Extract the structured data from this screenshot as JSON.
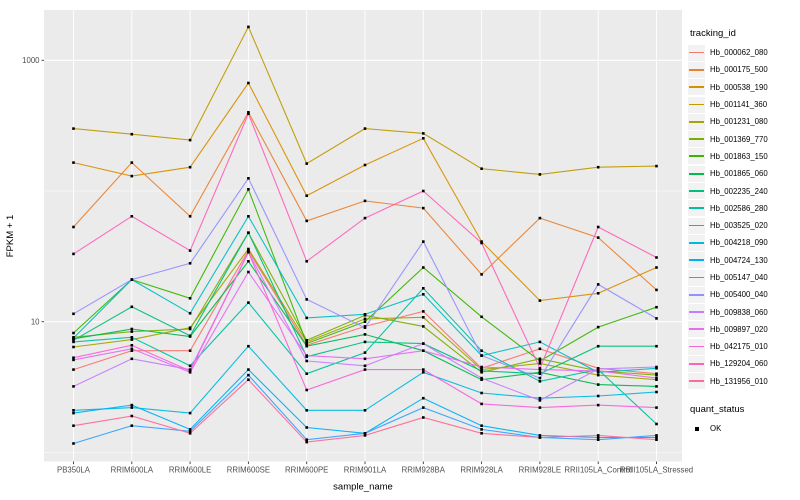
{
  "figure": {
    "colors": {
      "panel_bg": "#EBEBEB",
      "grid": "#FFFFFF",
      "tick_label": "#4D4D4D",
      "tick_mark": "#333333",
      "axis_title": "#000000",
      "point": "#000000",
      "legend_key_bg": "#F2F2F2"
    }
  },
  "chart_data": {
    "type": "line",
    "title": "",
    "xlabel": "sample_name",
    "ylabel": "FPKM + 1",
    "y_scale": "log10",
    "y_axis": {
      "tick_values": [
        1000,
        10
      ],
      "tick_labels": [
        "1000",
        "10"
      ],
      "major_gridlines": [
        10,
        1000
      ],
      "minor_gridlines": [
        1,
        100
      ]
    },
    "legend": {
      "title": "tracking_id",
      "position": "right"
    },
    "quant_status_legend": {
      "title": "quant_status",
      "entries": [
        {
          "label": "OK",
          "marker": "square-point-icon"
        }
      ]
    },
    "categories": [
      "PB350LA",
      "RRIM600LA",
      "RRIM600LE",
      "RRIM600SE",
      "RRIM600PE",
      "RRIM901LA",
      "RRIM928BA",
      "RRIM928LA",
      "RRIM928LE",
      "RRII105LA_Control",
      "RRII105LA_Stressed"
    ],
    "series": [
      {
        "name": "Hb_000062_080",
        "color": "#F8766D",
        "values": [
          4.3,
          6.0,
          6.0,
          35,
          6.6,
          9.2,
          12,
          4.4,
          6.2,
          4.4,
          4.0
        ]
      },
      {
        "name": "Hb_000175_500",
        "color": "#EA8331",
        "values": [
          53,
          165,
          64,
          400,
          59,
          84,
          74,
          23,
          62,
          44,
          17.5
        ]
      },
      {
        "name": "Hb_000538_190",
        "color": "#D89000",
        "values": [
          165,
          130,
          152,
          670,
          92,
          158,
          253,
          41,
          14.5,
          16.5,
          26
        ]
      },
      {
        "name": "Hb_001141_360",
        "color": "#C09B00",
        "values": [
          300,
          272,
          245,
          1800,
          162,
          300,
          276,
          148,
          134,
          152,
          155
        ]
      },
      {
        "name": "Hb_001231_080",
        "color": "#A3A500",
        "values": [
          6.4,
          7.3,
          9.0,
          36,
          7.0,
          10.5,
          10.8,
          4.3,
          4.8,
          3.9,
          3.6
        ]
      },
      {
        "name": "Hb_001369_770",
        "color": "#7CAE00",
        "values": [
          7.6,
          8.4,
          8.8,
          48,
          7.2,
          11.2,
          9.2,
          4.1,
          5.2,
          4.2,
          3.9
        ]
      },
      {
        "name": "Hb_001863_150",
        "color": "#39B600",
        "values": [
          8.2,
          21,
          15.1,
          103,
          6.8,
          10,
          26,
          10.9,
          5.0,
          9.1,
          12.9
        ]
      },
      {
        "name": "Hb_001865_060",
        "color": "#00BB4E",
        "values": [
          7.4,
          8.8,
          7.7,
          29,
          6.5,
          8.0,
          6.0,
          3.6,
          4.1,
          3.3,
          3.2
        ]
      },
      {
        "name": "Hb_002235_240",
        "color": "#00BF7D",
        "values": [
          7.2,
          13,
          7.8,
          48,
          5.4,
          7.0,
          6.8,
          4.2,
          4.0,
          6.5,
          6.5
        ]
      },
      {
        "name": "Hb_002586_280",
        "color": "#00C1A3",
        "values": [
          7.0,
          7.6,
          4.6,
          14,
          4.0,
          5.8,
          18,
          6.0,
          3.5,
          4.3,
          1.65
        ]
      },
      {
        "name": "Hb_003525_020",
        "color": "#00BFC4",
        "values": [
          7.5,
          21,
          11.6,
          64,
          10.7,
          11.4,
          16.2,
          5.5,
          7.0,
          4.1,
          4.4
        ]
      },
      {
        "name": "Hb_004218_090",
        "color": "#00BAE0",
        "values": [
          2.1,
          2.2,
          2.0,
          6.5,
          2.1,
          2.1,
          4.1,
          2.85,
          2.6,
          2.7,
          2.9
        ]
      },
      {
        "name": "Hb_004724_130",
        "color": "#00B0F6",
        "values": [
          2.0,
          2.3,
          1.5,
          4.3,
          1.55,
          1.4,
          2.6,
          1.6,
          1.35,
          1.3,
          1.3
        ]
      },
      {
        "name": "Hb_005147_040",
        "color": "#35A2FF",
        "values": [
          1.17,
          1.6,
          1.45,
          3.9,
          1.25,
          1.4,
          2.2,
          1.5,
          1.3,
          1.25,
          1.35
        ]
      },
      {
        "name": "Hb_005400_040",
        "color": "#9590FF",
        "values": [
          11.5,
          21,
          28,
          125,
          14.8,
          9.0,
          41,
          5.5,
          3.7,
          19.3,
          10.6
        ]
      },
      {
        "name": "Hb_009838_060",
        "color": "#C77CFF",
        "values": [
          3.2,
          5.2,
          4.3,
          34,
          5.0,
          4.6,
          6.8,
          3.7,
          2.5,
          4.35,
          4.5
        ]
      },
      {
        "name": "Hb_009897_020",
        "color": "#E76BF3",
        "values": [
          5.1,
          6.2,
          4.1,
          24,
          5.5,
          5.2,
          6.0,
          4.5,
          4.3,
          4.2,
          3.7
        ]
      },
      {
        "name": "Hb_042175_010",
        "color": "#FA62DB",
        "values": [
          5.3,
          6.6,
          4.2,
          34,
          3.0,
          4.3,
          4.3,
          2.35,
          2.2,
          2.3,
          2.2
        ]
      },
      {
        "name": "Hb_129204_060",
        "color": "#FF62BC",
        "values": [
          33,
          64,
          35,
          390,
          29,
          62,
          100,
          40,
          4.4,
          53,
          31
        ]
      },
      {
        "name": "Hb_131956_010",
        "color": "#FF6A98",
        "values": [
          1.6,
          1.9,
          1.4,
          3.6,
          1.2,
          1.35,
          1.85,
          1.4,
          1.3,
          1.35,
          1.25
        ]
      }
    ]
  }
}
